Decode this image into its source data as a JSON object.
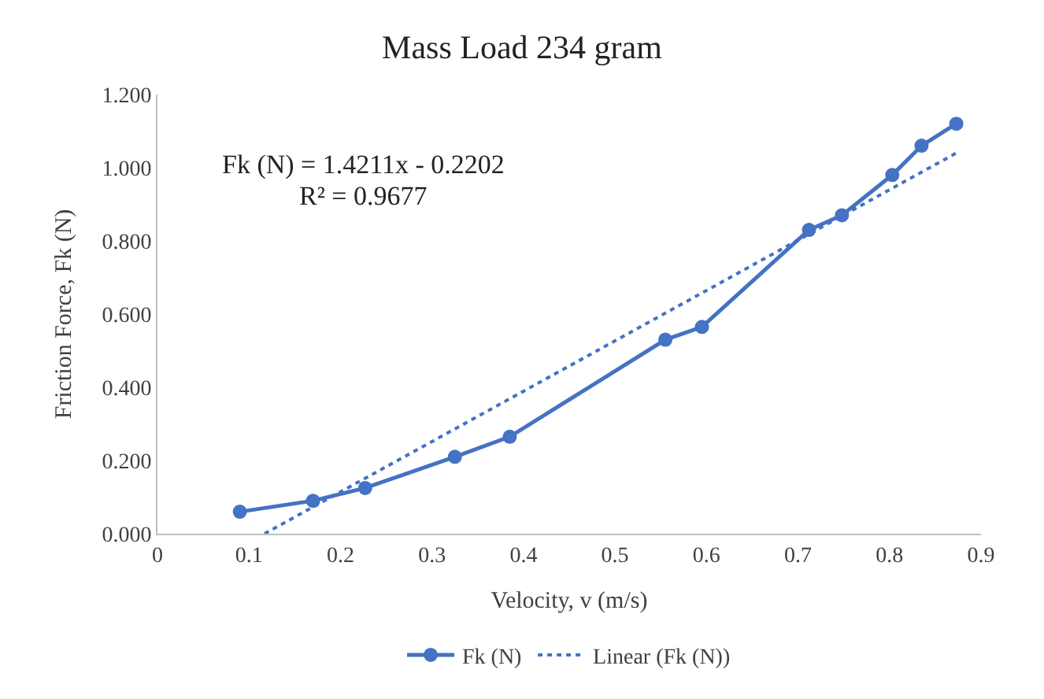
{
  "chart_data": {
    "type": "line",
    "title": "Mass Load 234 gram",
    "xlabel": "Velocity, v (m/s)",
    "ylabel": "Friction Force, Fk (N)",
    "annotations": [
      "Fk (N) = 1.4211x - 0.2202",
      "R² = 0.9677"
    ],
    "series": [
      {
        "name": "Fk (N)",
        "color": "#4472c4",
        "marker": "circle",
        "line_style": "solid",
        "x": [
          0.09,
          0.17,
          0.227,
          0.325,
          0.385,
          0.555,
          0.595,
          0.712,
          0.748,
          0.803,
          0.835,
          0.873
        ],
        "values": [
          0.06,
          0.09,
          0.125,
          0.21,
          0.265,
          0.53,
          0.565,
          0.83,
          0.87,
          0.98,
          1.06,
          1.12
        ]
      },
      {
        "name": "Linear (Fk (N))",
        "color": "#4472c4",
        "marker": "none",
        "line_style": "dotted",
        "x": [
          0.117,
          0.873
        ],
        "values": [
          0.0,
          1.04
        ]
      }
    ],
    "xlim": [
      0,
      0.9
    ],
    "xticks": [
      0,
      0.1,
      0.2,
      0.3,
      0.4,
      0.5,
      0.6,
      0.7,
      0.8,
      0.9
    ],
    "ylim": [
      0,
      1.2
    ],
    "yticks": [
      {
        "value": 0,
        "label": "0.000"
      },
      {
        "value": 0.2,
        "label": "0.200"
      },
      {
        "value": 0.4,
        "label": "0.400"
      },
      {
        "value": 0.6,
        "label": "0.600"
      },
      {
        "value": 0.8,
        "label": "0.800"
      },
      {
        "value": 1.0,
        "label": "1.000"
      },
      {
        "value": 1.2,
        "label": "1.200"
      }
    ],
    "legend": "bottom"
  }
}
